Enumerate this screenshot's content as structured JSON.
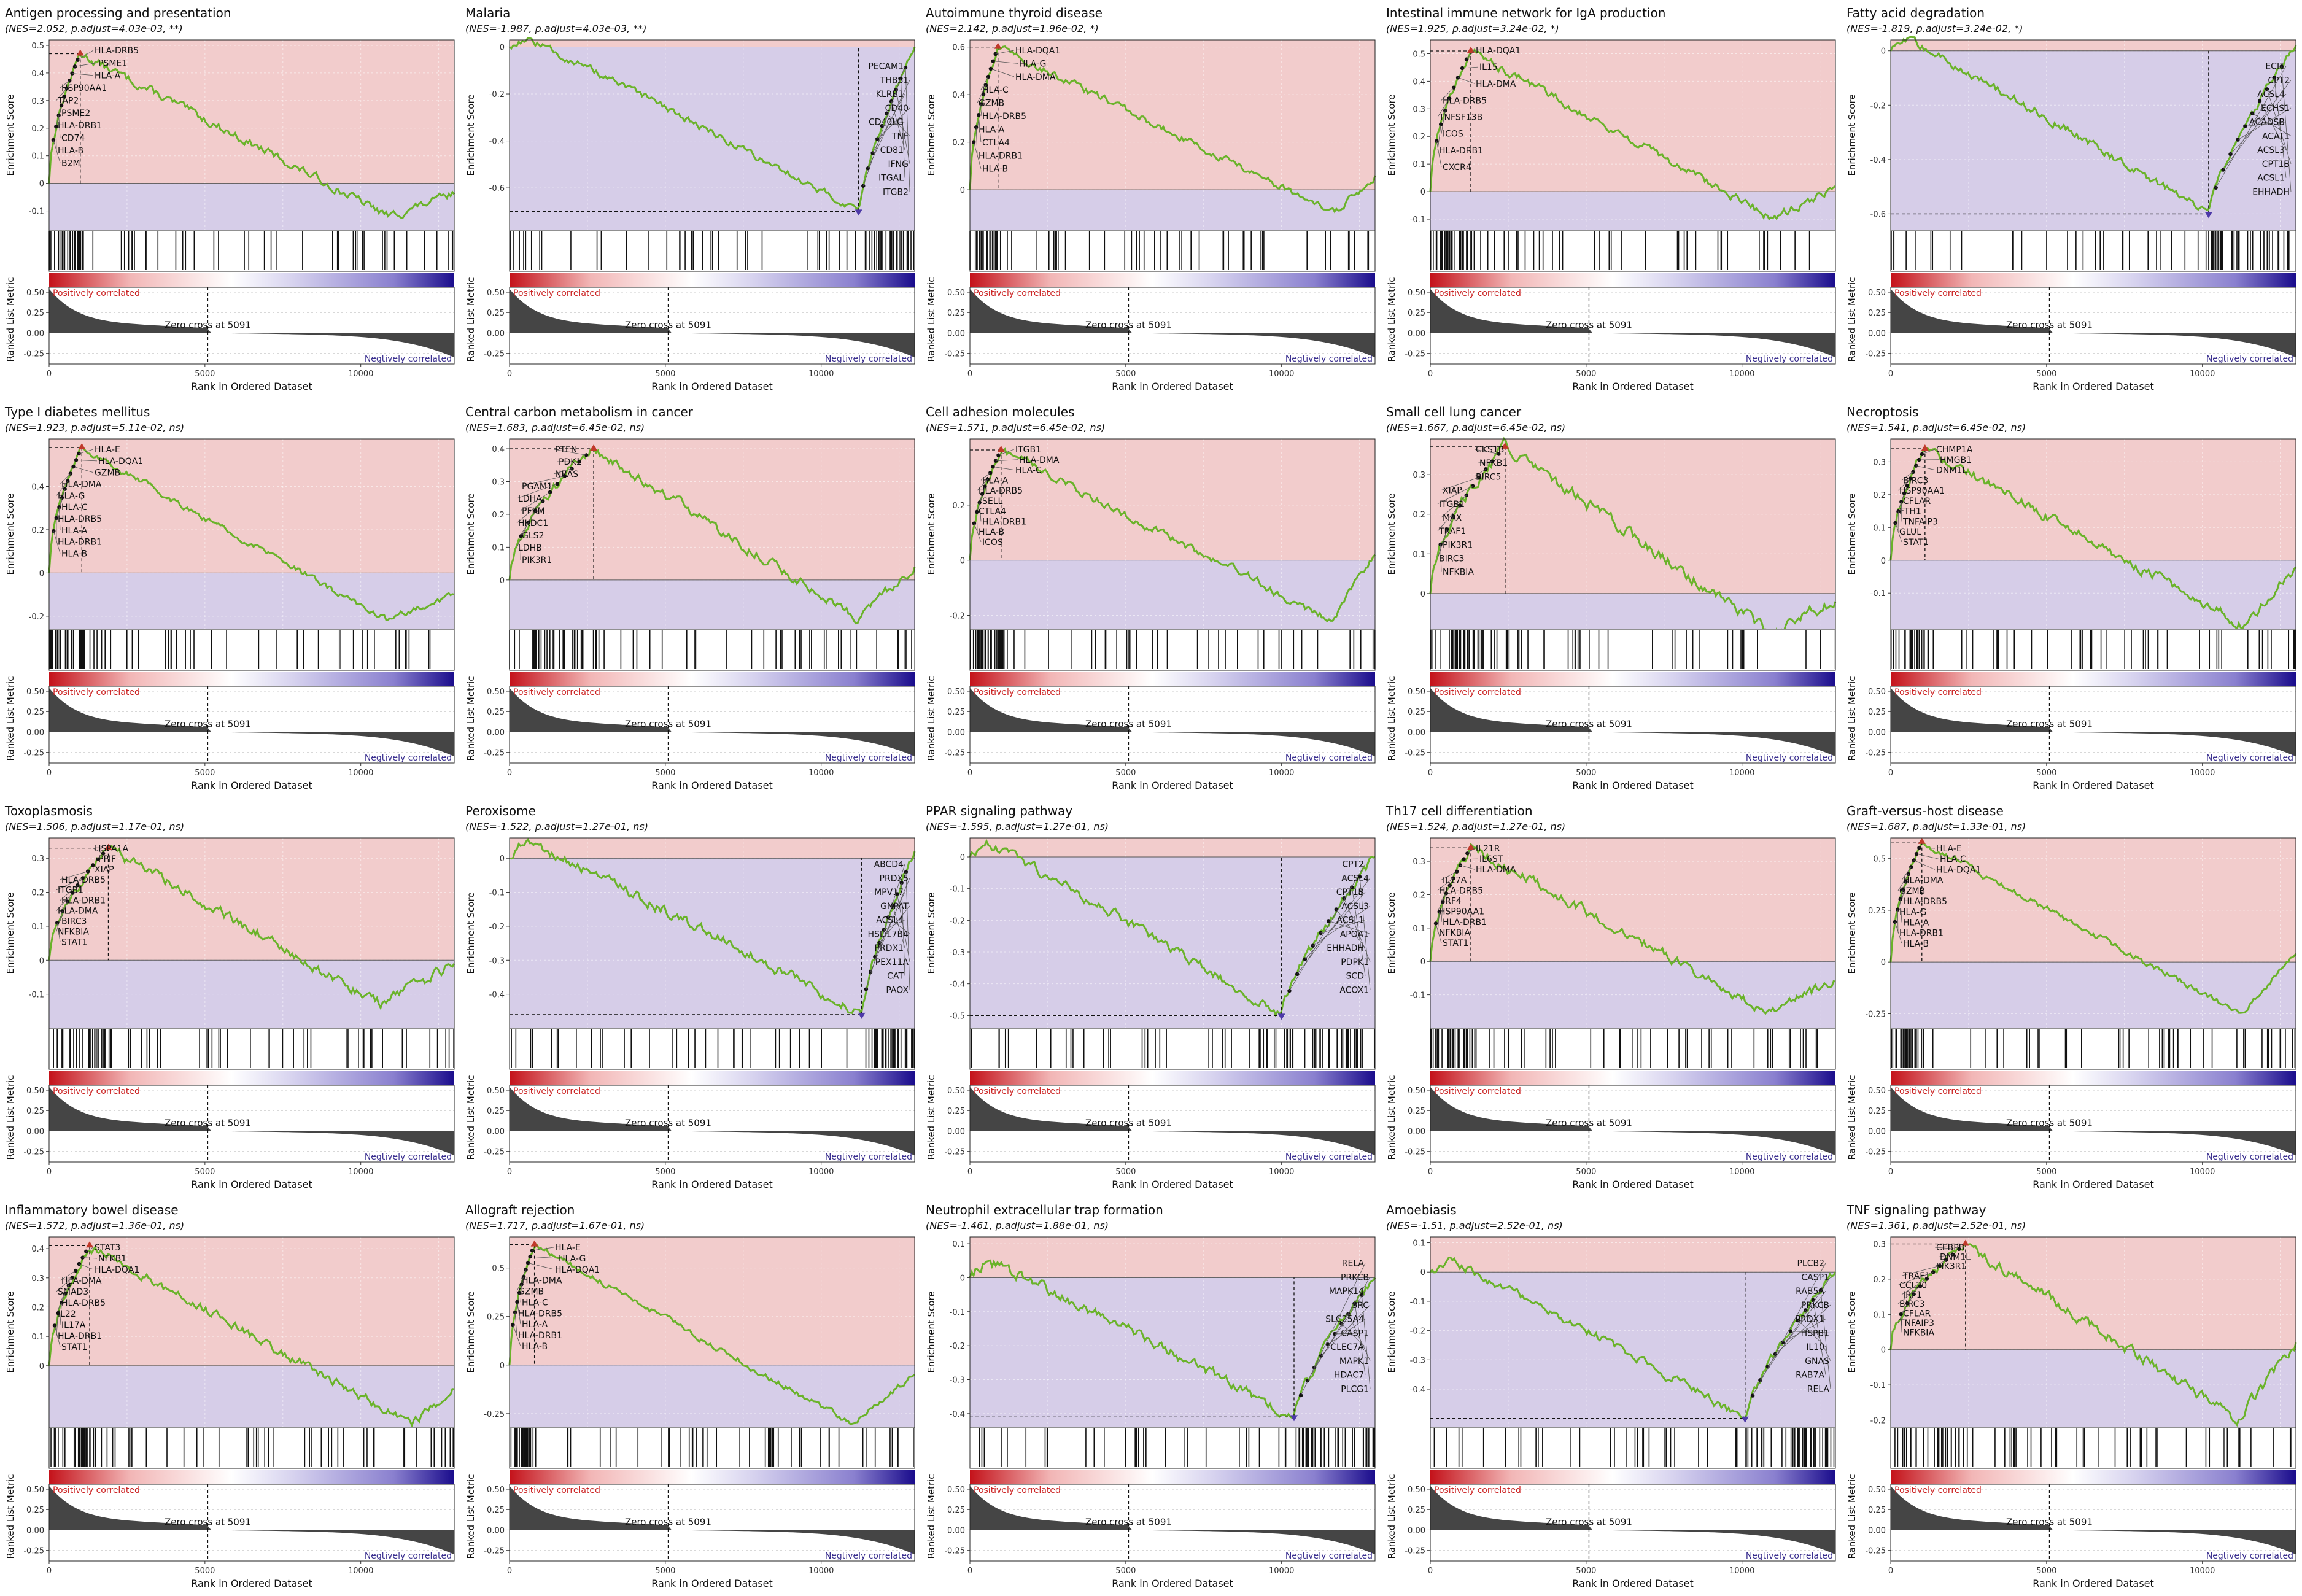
{
  "common": {
    "zero_cross_label": "Zero cross at 5091",
    "pos_label": "Positively correlated",
    "neg_label": "Negtively correlated",
    "y_label_es": "Enrichment Score",
    "y_label_rank": "Ranked List Metric",
    "x_label": "Rank in Ordered Dataset",
    "metric_ticks": [
      "0.50",
      "0.25",
      "0.00",
      "-0.25"
    ],
    "x_ticks": [
      "0",
      "5000",
      "10000"
    ],
    "n_genes": 13000,
    "zero_cross": 5091
  },
  "colors": {
    "pos_bg": "#f2cccc",
    "neg_bg": "#d6cde8",
    "curve": "#6ab32a",
    "pos_text": "#cc2222",
    "neg_text": "#3a2f8f",
    "peak_marker": "#c0392b",
    "trough_marker": "#4d39a8"
  },
  "chart_data": [
    {
      "type": "line",
      "title": "Antigen processing and presentation",
      "subtitle": "(NES=2.052, p.adjust=4.03e-03, **)",
      "nes": 2.052,
      "peak_rank": 1000,
      "peak_es": 0.47,
      "end_es": -0.04,
      "min_es": -0.12,
      "ylim": [
        -0.17,
        0.52
      ],
      "yticks": [
        -0.1,
        0,
        0.1,
        0.2,
        0.3,
        0.4,
        0.5
      ],
      "genes": [
        "HLA-DRB5",
        "PSME1",
        "HLA-A",
        "HSP90AA1",
        "TAP2",
        "PSME2",
        "HLA-DRB1",
        "CD74",
        "HLA-B",
        "B2M"
      ]
    },
    {
      "type": "line",
      "title": "Malaria",
      "subtitle": "(NES=-1.987, p.adjust=4.03e-03, **)",
      "nes": -1.987,
      "peak_rank": 11200,
      "peak_es": -0.7,
      "end_es": 0.0,
      "min_es": -0.7,
      "ylim": [
        -0.78,
        0.03
      ],
      "yticks": [
        -0.6,
        -0.4,
        -0.2,
        0
      ],
      "genes": [
        "ITGB2",
        "ITGAL",
        "IFNG",
        "CD81",
        "TNF",
        "CD40LG",
        "CD40",
        "KLRB1",
        "THBS1",
        "PECAM1"
      ]
    },
    {
      "type": "line",
      "title": "Autoimmune thyroid disease",
      "subtitle": "(NES=2.142, p.adjust=1.96e-02, *)",
      "nes": 2.142,
      "peak_rank": 900,
      "peak_es": 0.6,
      "end_es": 0.06,
      "min_es": -0.1,
      "ylim": [
        -0.17,
        0.63
      ],
      "yticks": [
        0,
        0.2,
        0.4,
        0.6
      ],
      "genes": [
        "HLA-DQA1",
        "HLA-G",
        "HLA-DMA",
        "HLA-C",
        "GZMB",
        "HLA-DRB5",
        "HLA-A",
        "CTLA4",
        "HLA-DRB1",
        "HLA-B"
      ]
    },
    {
      "type": "line",
      "title": "Intestinal immune network for IgA production",
      "subtitle": "(NES=1.925, p.adjust=3.24e-02, *)",
      "nes": 1.925,
      "peak_rank": 1300,
      "peak_es": 0.51,
      "end_es": 0.02,
      "min_es": -0.1,
      "ylim": [
        -0.14,
        0.55
      ],
      "yticks": [
        -0.1,
        0,
        0.1,
        0.2,
        0.3,
        0.4,
        0.5
      ],
      "genes": [
        "HLA-DQA1",
        "IL15",
        "HLA-DMA",
        "HLA-DRB5",
        "TNFSF13B",
        "ICOS",
        "HLA-DRB1",
        "CXCR4"
      ]
    },
    {
      "type": "line",
      "title": "Fatty acid degradation",
      "subtitle": "(NES=-1.819, p.adjust=3.24e-02, *)",
      "nes": -1.819,
      "peak_rank": 10200,
      "peak_es": -0.6,
      "end_es": 0.02,
      "min_es": -0.6,
      "ylim": [
        -0.66,
        0.04
      ],
      "yticks": [
        -0.6,
        -0.4,
        -0.2,
        0
      ],
      "genes": [
        "EHHADH",
        "ACSL1",
        "CPT1B",
        "ACSL3",
        "ACAT1",
        "ACADSB",
        "ECHS1",
        "ACSL4",
        "CPT2",
        "ECI1"
      ]
    },
    {
      "type": "line",
      "title": "Type I diabetes mellitus",
      "subtitle": "(NES=1.923, p.adjust=5.11e-02, ns)",
      "nes": 1.923,
      "peak_rank": 1050,
      "peak_es": 0.58,
      "end_es": -0.1,
      "min_es": -0.22,
      "ylim": [
        -0.26,
        0.62
      ],
      "yticks": [
        -0.2,
        0,
        0.2,
        0.4
      ],
      "genes": [
        "HLA-E",
        "HLA-DQA1",
        "GZMB",
        "HLA-DMA",
        "HLA-G",
        "HLA-C",
        "HLA-DRB5",
        "HLA-A",
        "HLA-DRB1",
        "HLA-B"
      ]
    },
    {
      "type": "line",
      "title": "Central carbon metabolism in cancer",
      "subtitle": "(NES=1.683, p.adjust=6.45e-02, ns)",
      "nes": 1.683,
      "peak_rank": 2700,
      "peak_es": 0.4,
      "end_es": 0.04,
      "min_es": -0.12,
      "ylim": [
        -0.15,
        0.43
      ],
      "yticks": [
        0,
        0.1,
        0.2,
        0.3,
        0.4
      ],
      "genes": [
        "PTEN",
        "PDK1",
        "NRAS",
        "PGAM1",
        "LDHA",
        "PFKM",
        "HKDC1",
        "GLS2",
        "LDHB",
        "PIK3R1"
      ]
    },
    {
      "type": "line",
      "title": "Cell adhesion molecules",
      "subtitle": "(NES=1.571, p.adjust=6.45e-02, ns)",
      "nes": 1.571,
      "peak_rank": 1000,
      "peak_es": 0.4,
      "end_es": 0.02,
      "min_es": -0.22,
      "ylim": [
        -0.25,
        0.44
      ],
      "yticks": [
        -0.2,
        0,
        0.2
      ],
      "genes": [
        "ITGB1",
        "HLA-DMA",
        "HLA-C",
        "HLA-A",
        "HLA-DRB5",
        "SELL",
        "CTLA4",
        "HLA-DRB1",
        "HLA-B",
        "ICOS"
      ]
    },
    {
      "type": "line",
      "title": "Small cell lung cancer",
      "subtitle": "(NES=1.667, p.adjust=6.45e-02, ns)",
      "nes": 1.667,
      "peak_rank": 2400,
      "peak_es": 0.37,
      "end_es": -0.02,
      "min_es": -0.1,
      "ylim": [
        -0.09,
        0.39
      ],
      "yticks": [
        0,
        0.1,
        0.2,
        0.3
      ],
      "genes": [
        "CKS1B",
        "NFKB1",
        "BIRC5",
        "XIAP",
        "ITGB1",
        "MAX",
        "TRAF1",
        "PIK3R1",
        "BIRC3",
        "NFKBIA"
      ]
    },
    {
      "type": "line",
      "title": "Necroptosis",
      "subtitle": "(NES=1.541, p.adjust=6.45e-02, ns)",
      "nes": 1.541,
      "peak_rank": 1100,
      "peak_es": 0.34,
      "end_es": -0.02,
      "min_es": -0.2,
      "ylim": [
        -0.21,
        0.37
      ],
      "yticks": [
        -0.1,
        0,
        0.1,
        0.2,
        0.3
      ],
      "genes": [
        "CHMP1A",
        "HMGB1",
        "DNM1L",
        "BIRC3",
        "HSP90AA1",
        "CFLAR",
        "FTH1",
        "TNFAIP3",
        "GLUL",
        "STAT1"
      ]
    },
    {
      "type": "line",
      "title": "Toxoplasmosis",
      "subtitle": "(NES=1.506, p.adjust=1.17e-01, ns)",
      "nes": 1.506,
      "peak_rank": 1900,
      "peak_es": 0.33,
      "end_es": -0.01,
      "min_es": -0.13,
      "ylim": [
        -0.2,
        0.36
      ],
      "yticks": [
        -0.1,
        0,
        0.1,
        0.2,
        0.3
      ],
      "genes": [
        "HSPA1A",
        "PPIF",
        "XIAP",
        "HLA-DRB5",
        "ITGB1",
        "HLA-DRB1",
        "HLA-DMA",
        "BIRC3",
        "NFKBIA",
        "STAT1"
      ]
    },
    {
      "type": "line",
      "title": "Peroxisome",
      "subtitle": "(NES=-1.522, p.adjust=1.27e-01, ns)",
      "nes": -1.522,
      "peak_rank": 11300,
      "peak_es": -0.46,
      "end_es": 0.02,
      "min_es": -0.46,
      "ylim": [
        -0.5,
        0.06
      ],
      "yticks": [
        -0.4,
        -0.3,
        -0.2,
        -0.1,
        0
      ],
      "genes": [
        "PAOX",
        "CAT",
        "PEX11A",
        "PRDX1",
        "HSD17B4",
        "ACSL4",
        "GNPAT",
        "MPV17",
        "PRDX5",
        "ABCD4"
      ]
    },
    {
      "type": "line",
      "title": "PPAR signaling pathway",
      "subtitle": "(NES=-1.595, p.adjust=1.27e-01, ns)",
      "nes": -1.595,
      "peak_rank": 10000,
      "peak_es": -0.5,
      "end_es": 0.0,
      "min_es": -0.5,
      "ylim": [
        -0.54,
        0.06
      ],
      "yticks": [
        -0.5,
        -0.4,
        -0.3,
        -0.2,
        -0.1,
        0
      ],
      "genes": [
        "ACOX1",
        "SCD",
        "PDPK1",
        "EHHADH",
        "APOA1",
        "ACSL1",
        "ACSL3",
        "CPT1B",
        "ACSL4",
        "CPT2"
      ]
    },
    {
      "type": "line",
      "title": "Th17 cell differentiation",
      "subtitle": "(NES=1.524, p.adjust=1.27e-01, ns)",
      "nes": 1.524,
      "peak_rank": 1300,
      "peak_es": 0.34,
      "end_es": -0.06,
      "min_es": -0.15,
      "ylim": [
        -0.2,
        0.37
      ],
      "yticks": [
        -0.1,
        0,
        0.1,
        0.2,
        0.3
      ],
      "genes": [
        "IL21R",
        "IL6ST",
        "HLA-DMA",
        "IL17A",
        "HLA-DRB5",
        "IRF4",
        "HSP90AA1",
        "HLA-DRB1",
        "NFKBIA",
        "STAT1"
      ]
    },
    {
      "type": "line",
      "title": "Graft-versus-host disease",
      "subtitle": "(NES=1.687, p.adjust=1.33e-01, ns)",
      "nes": 1.687,
      "peak_rank": 1000,
      "peak_es": 0.58,
      "end_es": 0.04,
      "min_es": -0.25,
      "ylim": [
        -0.32,
        0.6
      ],
      "yticks": [
        -0.25,
        0,
        0.25,
        0.5
      ],
      "genes": [
        "HLA-E",
        "HLA-C",
        "HLA-DQA1",
        "HLA-DMA",
        "GZMB",
        "HLA-DRB5",
        "HLA-G",
        "HLA-A",
        "HLA-DRB1",
        "HLA-B"
      ]
    },
    {
      "type": "line",
      "title": "Inflammatory bowel disease",
      "subtitle": "(NES=1.572, p.adjust=1.36e-01, ns)",
      "nes": 1.572,
      "peak_rank": 1300,
      "peak_es": 0.41,
      "end_es": -0.08,
      "min_es": -0.2,
      "ylim": [
        -0.21,
        0.44
      ],
      "yticks": [
        0,
        0.1,
        0.2,
        0.3,
        0.4
      ],
      "genes": [
        "STAT3",
        "NFKB1",
        "HLA-DQA1",
        "HLA-DMA",
        "SMAD3",
        "HLA-DRB5",
        "IL22",
        "IL17A",
        "HLA-DRB1",
        "STAT1"
      ]
    },
    {
      "type": "line",
      "title": "Allograft rejection",
      "subtitle": "(NES=1.717, p.adjust=1.67e-01, ns)",
      "nes": 1.717,
      "peak_rank": 800,
      "peak_es": 0.62,
      "end_es": -0.05,
      "min_es": -0.3,
      "ylim": [
        -0.32,
        0.66
      ],
      "yticks": [
        -0.25,
        0,
        0.25,
        0.5
      ],
      "genes": [
        "HLA-E",
        "HLA-G",
        "HLA-DQA1",
        "HLA-DMA",
        "GZMB",
        "HLA-C",
        "HLA-DRB5",
        "HLA-A",
        "HLA-DRB1",
        "HLA-B"
      ]
    },
    {
      "type": "line",
      "title": "Neutrophil extracellular trap formation",
      "subtitle": "(NES=-1.461, p.adjust=1.88e-01, ns)",
      "nes": -1.461,
      "peak_rank": 10400,
      "peak_es": -0.41,
      "end_es": 0.0,
      "min_es": -0.41,
      "ylim": [
        -0.44,
        0.12
      ],
      "yticks": [
        -0.4,
        -0.3,
        -0.2,
        -0.1,
        0,
        0.1
      ],
      "genes": [
        "PLCG1",
        "HDAC7",
        "MAPK1",
        "CLEC7A",
        "CASP1",
        "SLC25A4",
        "SRC",
        "MAPK14",
        "PRKCB",
        "RELA"
      ]
    },
    {
      "type": "line",
      "title": "Amoebiasis",
      "subtitle": "(NES=-1.51, p.adjust=2.52e-01, ns)",
      "nes": -1.51,
      "peak_rank": 10100,
      "peak_es": -0.5,
      "end_es": 0.0,
      "min_es": -0.5,
      "ylim": [
        -0.53,
        0.12
      ],
      "yticks": [
        -0.4,
        -0.3,
        -0.2,
        -0.1,
        0,
        0.1
      ],
      "genes": [
        "RELA",
        "RAB7A",
        "GNAS",
        "IL10",
        "HSPB1",
        "PRDX1",
        "PRKCB",
        "RAB5A",
        "CASP1",
        "PLCB2"
      ]
    },
    {
      "type": "line",
      "title": "TNF signaling pathway",
      "subtitle": "(NES=1.361, p.adjust=2.52e-01, ns)",
      "nes": 1.361,
      "peak_rank": 2400,
      "peak_es": 0.3,
      "end_es": 0.02,
      "min_es": -0.2,
      "ylim": [
        -0.22,
        0.32
      ],
      "yticks": [
        -0.2,
        -0.1,
        0,
        0.1,
        0.2,
        0.3
      ],
      "genes": [
        "CEBPB",
        "DNM1L",
        "PIK3R1",
        "TRAF1",
        "CCL20",
        "IRF1",
        "BIRC3",
        "CFLAR",
        "TNFAIP3",
        "NFKBIA"
      ]
    }
  ]
}
